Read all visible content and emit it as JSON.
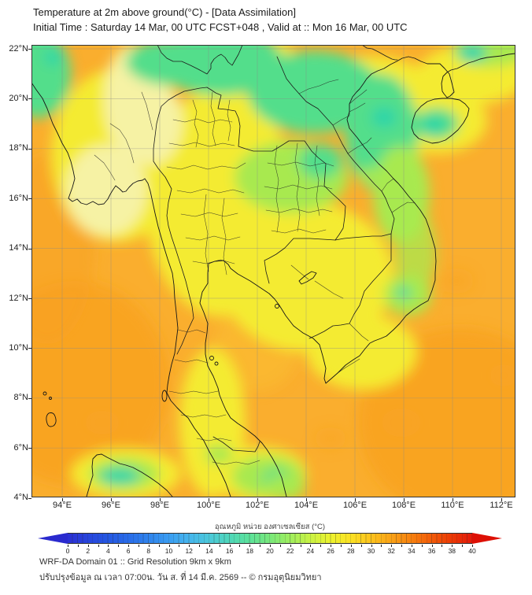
{
  "header": {
    "line1": "Temperature at 2m above ground(°C) - [Data Assimilation]",
    "line2": "Initial Time : Saturday 14 Mar, 00 UTC FCST+048 , Valid at :: Mon 16 Mar, 00 UTC"
  },
  "axes": {
    "y": {
      "labels": [
        "22°N",
        "20°N",
        "18°N",
        "16°N",
        "14°N",
        "12°N",
        "10°N",
        "8°N",
        "6°N",
        "4°N"
      ]
    },
    "x": {
      "labels": [
        "94°E",
        "96°E",
        "98°E",
        "100°E",
        "102°E",
        "104°E",
        "106°E",
        "108°E",
        "110°E",
        "112°E"
      ]
    }
  },
  "colorbar": {
    "label": "อุณหภูมิ หน่วย องศาเซลเซียส (°C)",
    "ticks": [
      0,
      2,
      4,
      6,
      8,
      10,
      12,
      14,
      16,
      18,
      20,
      22,
      24,
      26,
      28,
      30,
      32,
      34,
      36,
      38,
      40
    ],
    "stops": [
      [
        0,
        "#2b2fd4"
      ],
      [
        2,
        "#2745dd"
      ],
      [
        4,
        "#2457e3"
      ],
      [
        6,
        "#296ce9"
      ],
      [
        8,
        "#2f84ee"
      ],
      [
        10,
        "#3a9df2"
      ],
      [
        12,
        "#46b6ee"
      ],
      [
        14,
        "#4cc9da"
      ],
      [
        16,
        "#4fd7ba"
      ],
      [
        18,
        "#5ce29a"
      ],
      [
        20,
        "#79e87b"
      ],
      [
        22,
        "#9fee5e"
      ],
      [
        24,
        "#c9f244"
      ],
      [
        26,
        "#edf32e"
      ],
      [
        28,
        "#fbe124"
      ],
      [
        30,
        "#fcc31d"
      ],
      [
        32,
        "#faa216"
      ],
      [
        34,
        "#f7800e"
      ],
      [
        36,
        "#f25b08"
      ],
      [
        38,
        "#ec3906"
      ],
      [
        40,
        "#e3190a"
      ]
    ],
    "left_tip": "#2a2ace",
    "right_tip": "#dd1005"
  },
  "footer": {
    "line1": "WRF-DA Domain 01 :: Grid Resolution 9km x 9km",
    "line2": "ปรับปรุงข้อมูล ณ เวลา 07:00น. วัน ส. ที่ 14 มี.ค. 2569 -- © กรมอุตุนิยมวิทยา"
  },
  "palette": {
    "sea": "#FAAE2E",
    "sea_deep": "#F8A01F",
    "gulf": "#FBC133",
    "land_yellow": "#F4EB31",
    "pale_yellow": "#F6F2A4",
    "light_green": "#A8E94F",
    "green": "#52DE8B",
    "teal": "#2BD5A9"
  },
  "chart_data": {
    "type": "heatmap",
    "title": "Temperature at 2m above ground(°C) - [Data Assimilation]",
    "subtitle": "Initial Time : Saturday 14 Mar, 00 UTC FCST+048 , Valid at :: Mon 16 Mar, 00 UTC",
    "units": "°C",
    "xlabel_ticks": [
      "94°E",
      "96°E",
      "98°E",
      "100°E",
      "102°E",
      "104°E",
      "106°E",
      "108°E",
      "110°E",
      "112°E"
    ],
    "ylabel_ticks": [
      "22°N",
      "20°N",
      "18°N",
      "16°N",
      "14°N",
      "12°N",
      "10°N",
      "8°N",
      "6°N",
      "4°N"
    ],
    "x_range_deg_east": [
      92.7,
      112.6
    ],
    "y_range_deg_north": [
      4.0,
      22.2
    ],
    "colorbar_label": "อุณหภูมิ หน่วย องศาเซลเซียส (°C)",
    "colorbar_range": [
      0,
      40
    ],
    "colorbar_ticks": [
      0,
      2,
      4,
      6,
      8,
      10,
      12,
      14,
      16,
      18,
      20,
      22,
      24,
      26,
      28,
      30,
      32,
      34,
      36,
      38,
      40
    ],
    "grid_lons": [
      94,
      96,
      98,
      100,
      102,
      104,
      106,
      108,
      110,
      112
    ],
    "grid_lats": [
      22,
      20,
      18,
      16,
      14,
      12,
      10,
      8,
      6,
      4
    ],
    "approx_temp_grid_by_lat_row": [
      [
        22,
        24,
        21,
        20,
        21,
        20,
        21,
        25,
        24,
        25
      ],
      [
        26,
        25,
        22,
        22,
        21,
        21,
        23,
        26,
        20,
        26
      ],
      [
        29,
        26,
        25,
        25,
        23,
        22,
        22,
        26,
        26,
        28
      ],
      [
        30,
        26,
        26,
        26,
        25,
        24,
        22,
        26,
        28,
        29
      ],
      [
        30,
        29,
        26,
        26,
        26,
        25,
        24,
        26,
        28,
        29
      ],
      [
        30,
        30,
        29,
        27,
        26,
        26,
        26,
        24,
        28,
        29
      ],
      [
        30,
        30,
        29,
        27,
        28,
        28,
        26,
        28,
        29,
        29
      ],
      [
        30,
        30,
        28,
        26,
        29,
        29,
        29,
        29,
        29,
        29
      ],
      [
        30,
        30,
        30,
        26,
        29,
        29,
        29,
        29,
        29,
        29
      ],
      [
        30,
        24,
        25,
        26,
        24,
        29,
        29,
        29,
        29,
        29
      ]
    ],
    "notes": "WRF-DA Domain 01 :: Grid Resolution 9km x 9km; rainbow colorbar with arrow extensions both ends; map covers Myanmar, Thailand, Laos, Cambodia, Vietnam, Hainan, northern Malaysia and Sumatra tip; warm orange seas ~29-30°C, yellow lowlands ~26-27°C, green highlands/north ~20-23°C"
  }
}
